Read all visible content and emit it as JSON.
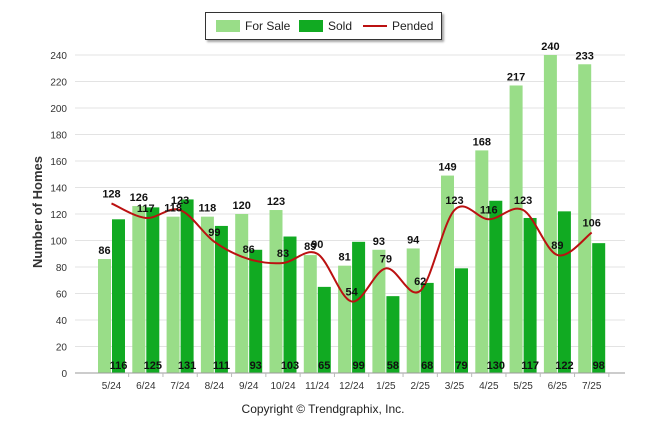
{
  "chart_data": {
    "type": "bar",
    "ylabel": "Number of Homes",
    "xlabel": "",
    "ylim": [
      0,
      240
    ],
    "yticks": [
      0,
      20,
      40,
      60,
      80,
      100,
      120,
      140,
      160,
      180,
      200,
      220,
      240
    ],
    "categories": [
      "5/24",
      "6/24",
      "7/24",
      "8/24",
      "9/24",
      "10/24",
      "11/24",
      "12/24",
      "1/25",
      "2/25",
      "3/25",
      "4/25",
      "5/25",
      "6/25",
      "7/25"
    ],
    "series": [
      {
        "name": "For Sale",
        "type": "bar",
        "color": "#99dd88",
        "values": [
          86,
          126,
          118,
          118,
          120,
          123,
          89,
          81,
          93,
          94,
          149,
          168,
          217,
          240,
          233
        ]
      },
      {
        "name": "Sold",
        "type": "bar",
        "color": "#11aa22",
        "values": [
          116,
          125,
          131,
          111,
          93,
          103,
          65,
          99,
          58,
          68,
          79,
          130,
          117,
          122,
          98
        ]
      },
      {
        "name": "Pended",
        "type": "line",
        "color": "#bb1111",
        "values": [
          128,
          117,
          123,
          99,
          86,
          83,
          90,
          54,
          79,
          62,
          123,
          116,
          123,
          89,
          106
        ]
      }
    ],
    "legend": "top-center",
    "grid": true
  },
  "footer": {
    "copyright": "Copyright © Trendgraphix, Inc."
  }
}
